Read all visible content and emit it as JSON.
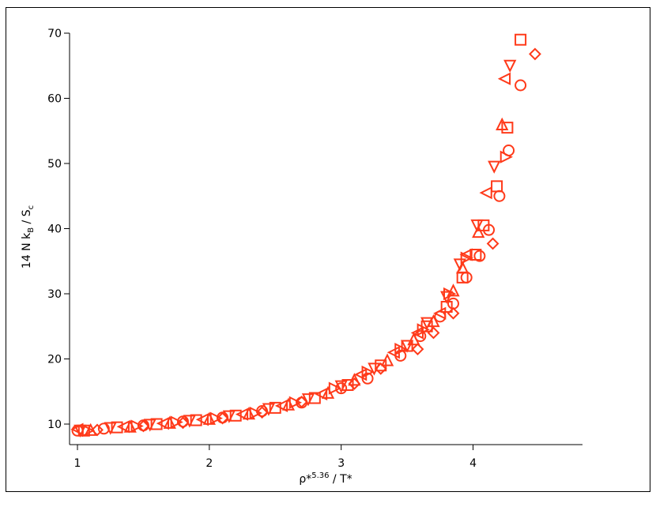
{
  "chart_data": {
    "type": "scatter",
    "xlabel": {
      "base": "ρ*",
      "sup": "5.36",
      "rest": " / T*"
    },
    "ylabel": {
      "base": "14 N k",
      "sub1": "B",
      "mid": " / S",
      "sub2": "c"
    },
    "xlim": [
      0.94,
      4.83
    ],
    "ylim": [
      6.85,
      70
    ],
    "xticks": [
      1,
      2,
      3,
      4
    ],
    "yticks": [
      10,
      20,
      30,
      40,
      50,
      60,
      70
    ],
    "series": [
      {
        "marker": "circle",
        "color": "#ff3a1a",
        "x": [
          1.0,
          1.2,
          1.5,
          1.8,
          2.1,
          2.4,
          2.7,
          3.0,
          3.2,
          3.45,
          3.6,
          3.75,
          3.85,
          3.95,
          4.05,
          4.12,
          4.2,
          4.27,
          4.36
        ],
        "values": [
          9.0,
          9.3,
          9.8,
          10.4,
          11.0,
          12.0,
          13.3,
          15.5,
          17.0,
          20.5,
          23.5,
          26.5,
          28.5,
          32.5,
          35.8,
          39.8,
          45.0,
          52.0,
          62.0
        ]
      },
      {
        "marker": "square",
        "color": "#ff3a1a",
        "x": [
          1.05,
          1.3,
          1.6,
          1.9,
          2.2,
          2.5,
          2.8,
          3.05,
          3.3,
          3.5,
          3.65,
          3.8,
          3.92,
          4.02,
          4.08,
          4.18,
          4.26,
          4.36
        ],
        "values": [
          9.0,
          9.5,
          10.0,
          10.6,
          11.3,
          12.5,
          14.0,
          16.0,
          19.0,
          22.0,
          25.0,
          28.0,
          32.5,
          36.0,
          40.5,
          46.5,
          55.5,
          69.0
        ]
      },
      {
        "marker": "triangle-up",
        "color": "#ff3a1a",
        "x": [
          1.1,
          1.4,
          1.7,
          2.0,
          2.3,
          2.6,
          2.9,
          3.1,
          3.35,
          3.55,
          3.7,
          3.85,
          3.92,
          4.04,
          4.22
        ],
        "values": [
          9.1,
          9.6,
          10.2,
          10.8,
          11.6,
          13.0,
          14.8,
          16.8,
          19.8,
          23.0,
          25.8,
          30.5,
          34.0,
          39.5,
          56.0
        ]
      },
      {
        "marker": "triangle-down",
        "color": "#ff3a1a",
        "x": [
          1.02,
          1.25,
          1.55,
          1.85,
          2.15,
          2.45,
          2.75,
          3.0,
          3.25,
          3.5,
          3.65,
          3.8,
          3.9,
          4.03,
          4.16,
          4.28
        ],
        "values": [
          9.0,
          9.4,
          9.9,
          10.5,
          11.2,
          12.3,
          13.8,
          15.8,
          18.5,
          22.0,
          25.5,
          29.5,
          34.5,
          40.5,
          49.5,
          65.0
        ]
      },
      {
        "marker": "triangle-left",
        "color": "#ff3a1a",
        "x": [
          1.0,
          1.35,
          1.65,
          1.95,
          2.25,
          2.55,
          2.85,
          3.15,
          3.4,
          3.58,
          3.75,
          3.95,
          4.1,
          4.24
        ],
        "values": [
          9.2,
          9.6,
          10.1,
          10.7,
          11.5,
          12.8,
          14.6,
          17.6,
          21.0,
          24.0,
          27.0,
          36.0,
          45.5,
          63.0
        ]
      },
      {
        "marker": "triangle-right",
        "color": "#ff3a1a",
        "x": [
          1.08,
          1.45,
          1.75,
          2.05,
          2.35,
          2.65,
          2.95,
          3.2,
          3.45,
          3.62,
          3.82,
          3.95,
          4.25
        ],
        "values": [
          9.0,
          9.7,
          10.3,
          10.9,
          11.7,
          13.3,
          15.5,
          18.0,
          21.5,
          24.5,
          30.0,
          35.5,
          51.0
        ]
      },
      {
        "marker": "diamond",
        "color": "#ff3a1a",
        "x": [
          1.15,
          1.5,
          1.8,
          2.1,
          2.4,
          2.7,
          3.1,
          3.3,
          3.58,
          3.7,
          3.85,
          4.15,
          4.47
        ],
        "values": [
          9.1,
          9.7,
          10.2,
          10.9,
          11.8,
          13.4,
          16.2,
          18.5,
          21.5,
          24.0,
          27.0,
          37.7,
          66.8
        ]
      }
    ]
  }
}
